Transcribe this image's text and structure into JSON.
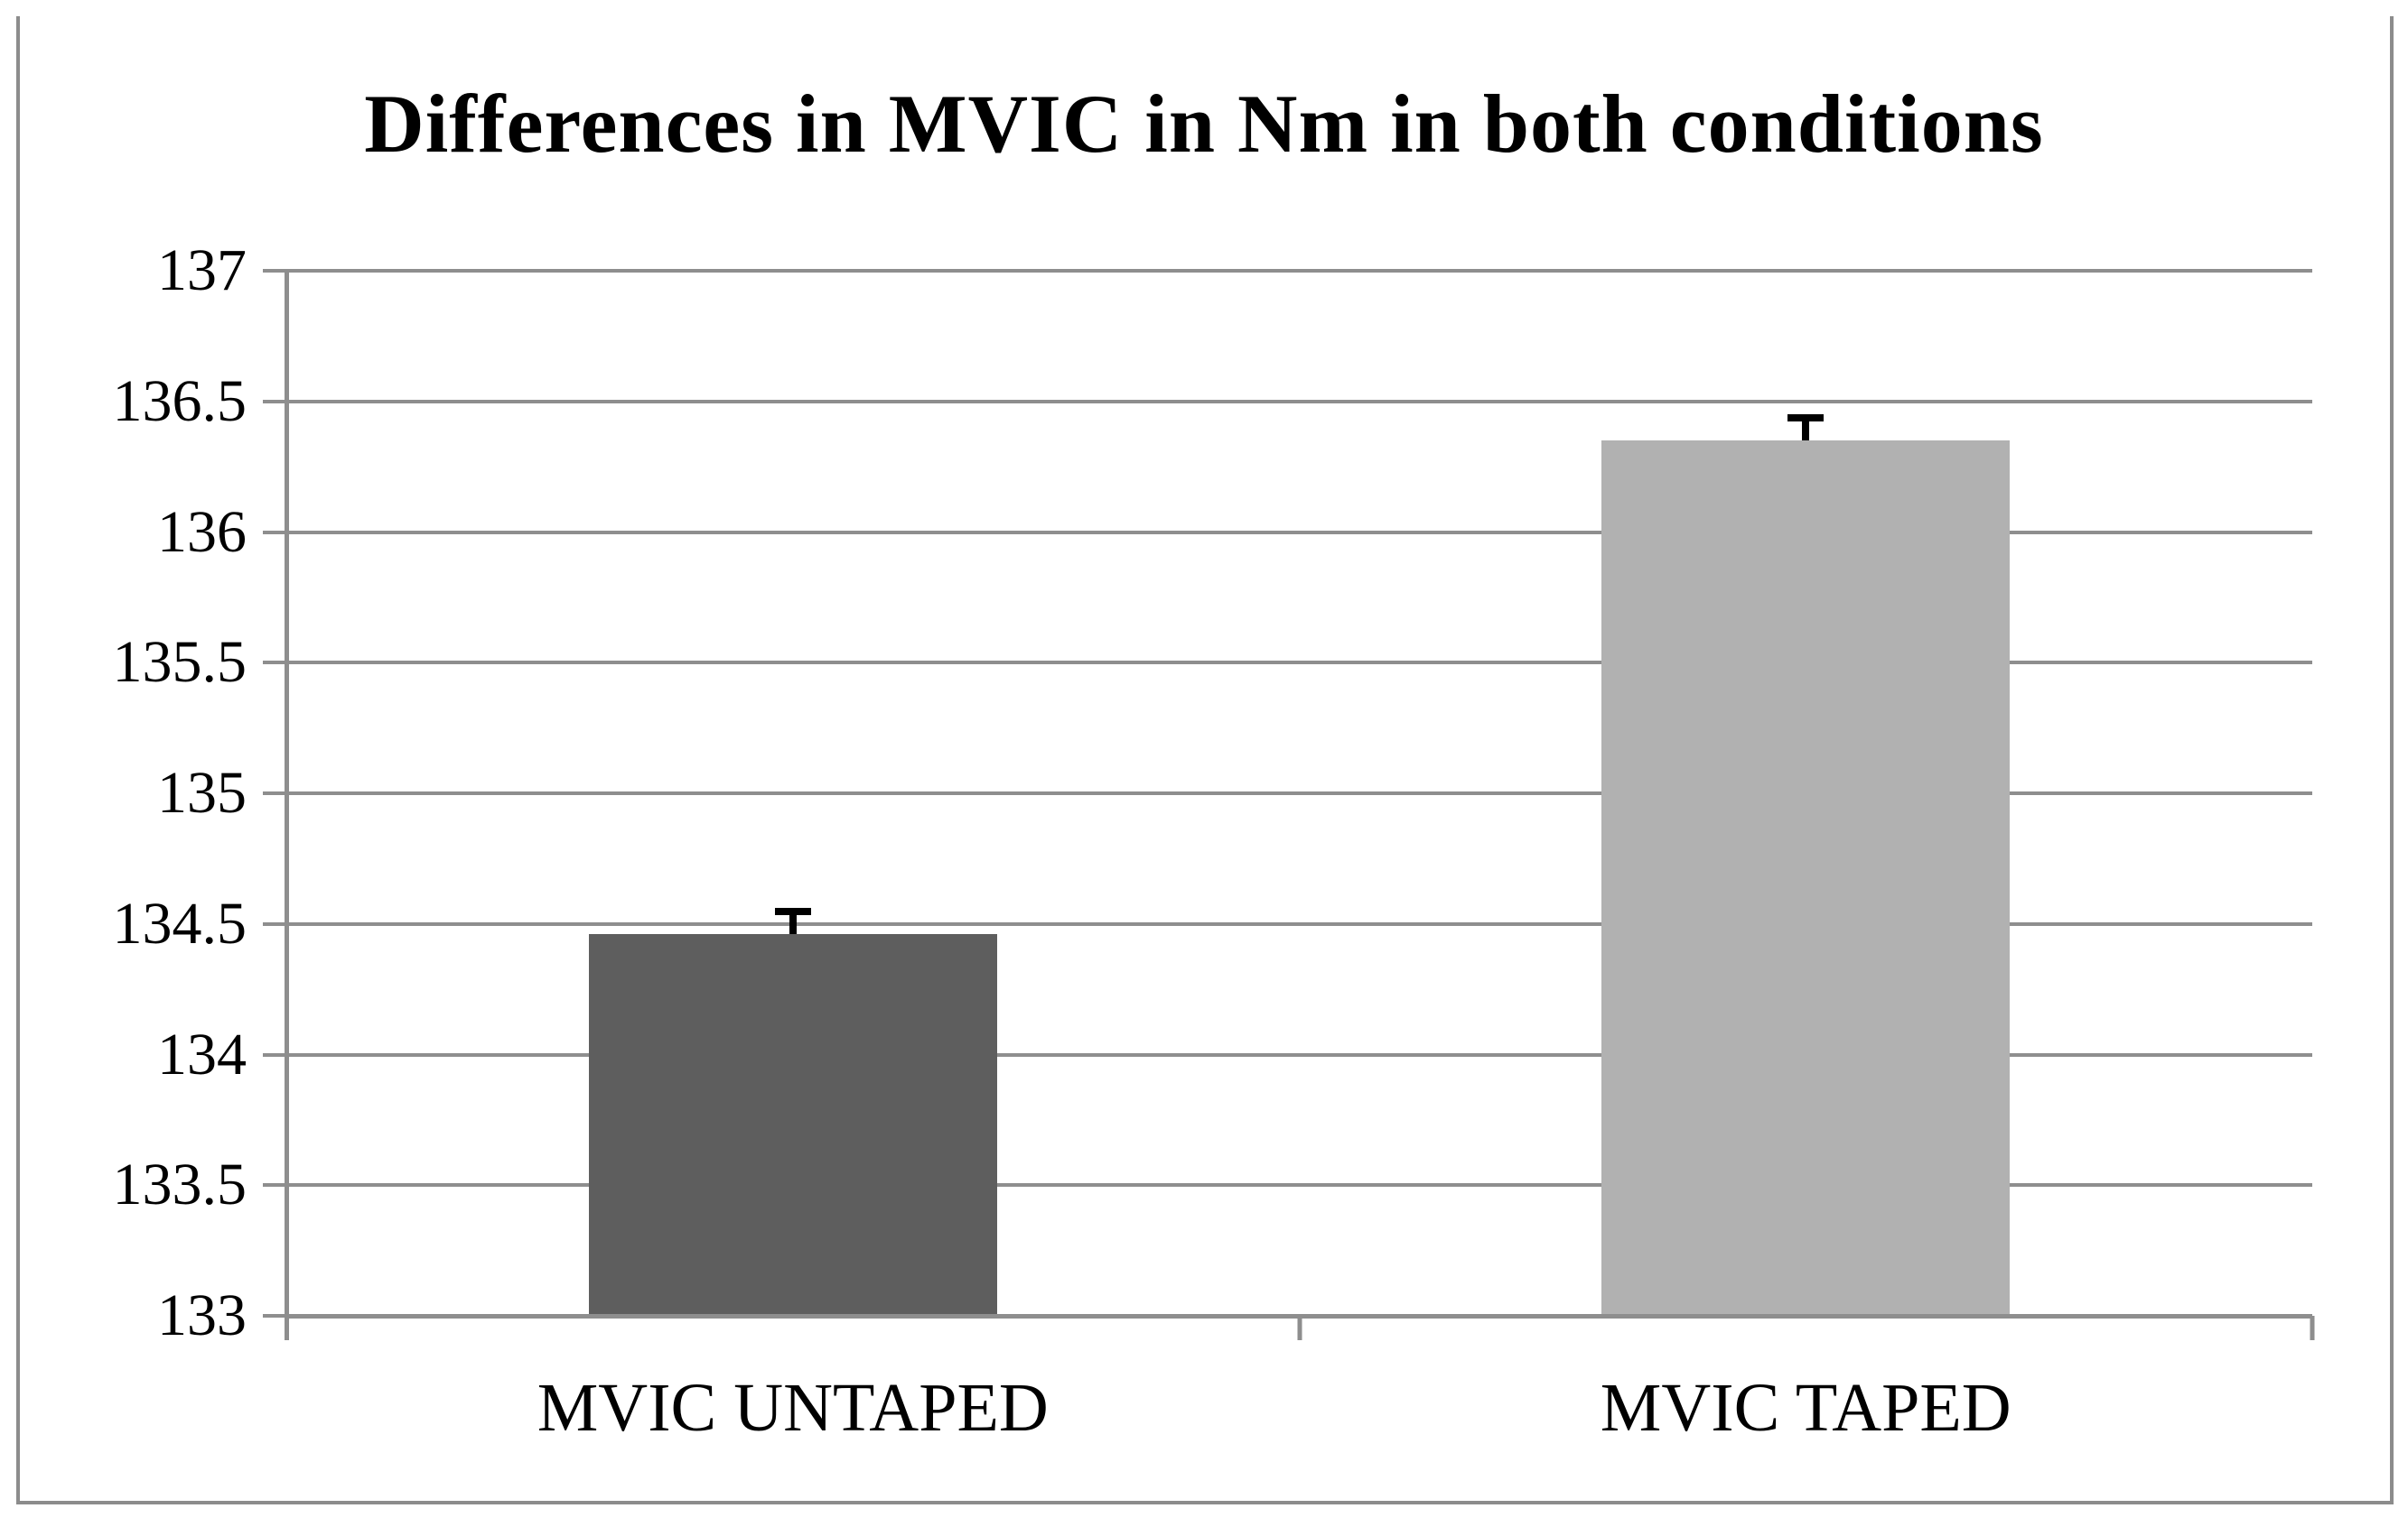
{
  "chart_data": {
    "type": "bar",
    "title": "Differences in MVIC in Nm in both conditions",
    "categories": [
      "MVIC UNTAPED",
      "MVIC TAPED"
    ],
    "values": [
      134.46,
      136.35
    ],
    "errors_plus": [
      0.1,
      0.1
    ],
    "bar_colors": [
      "#5e5e5e",
      "#b1b1b1"
    ],
    "ylim": [
      133,
      137
    ],
    "ytick_step": 0.5,
    "yticks": [
      "133",
      "133.5",
      "134",
      "134.5",
      "135",
      "135.5",
      "136",
      "136.5",
      "137"
    ],
    "xlabel": "",
    "ylabel": "",
    "grid": true,
    "legend_position": "none",
    "colors": {
      "axis": "#8e8e8e",
      "gridline": "#8e8e8e",
      "error_bar": "#000000",
      "figure_border": "#8c8c8c",
      "text": "#000000",
      "background": "#ffffff"
    }
  }
}
